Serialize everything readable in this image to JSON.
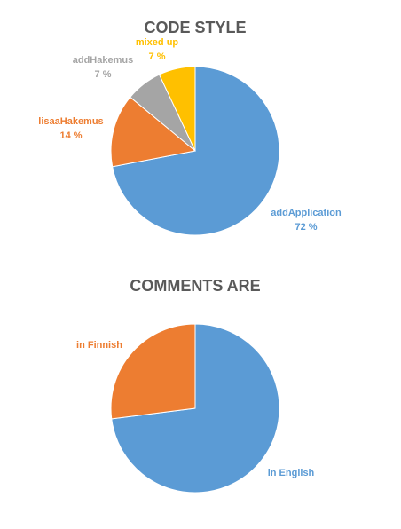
{
  "chart_data": [
    {
      "type": "pie",
      "title": "CODE STYLE",
      "slices": [
        {
          "name": "addApplication",
          "value": 72,
          "value_label": "72 %",
          "color": "#5B9BD5"
        },
        {
          "name": "lisaaHakemus",
          "value": 14,
          "value_label": "14 %",
          "color": "#ED7D31"
        },
        {
          "name": "addHakemus",
          "value": 7,
          "value_label": "7 %",
          "color": "#A5A5A5"
        },
        {
          "name": "mixed up",
          "value": 7,
          "value_label": "7 %",
          "color": "#FFC000"
        }
      ]
    },
    {
      "type": "pie",
      "title": "COMMENTS ARE",
      "slices": [
        {
          "name": "in English",
          "value": 73,
          "color": "#5B9BD5"
        },
        {
          "name": "in Finnish",
          "value": 27,
          "color": "#ED7D31"
        }
      ]
    }
  ]
}
